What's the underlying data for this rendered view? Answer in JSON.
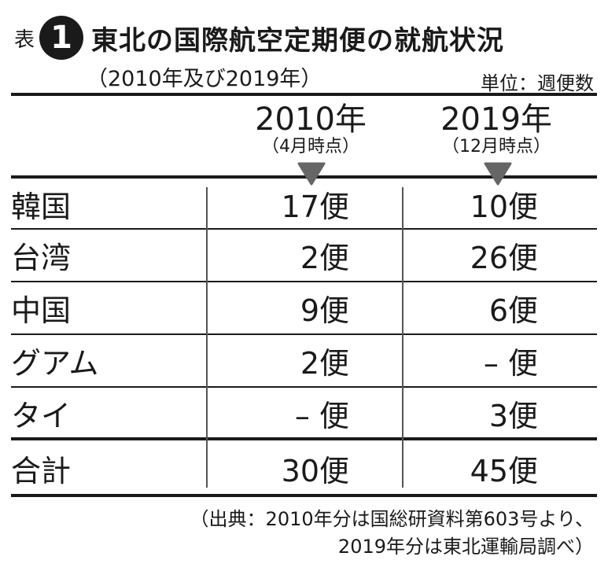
{
  "header": {
    "prefix": "表",
    "number": "1",
    "title": "東北の国際航空定期便の就航状況",
    "subtitle": "（2010年及び2019年）",
    "unit": "単位：週便数"
  },
  "columns": [
    {
      "year": "2010年",
      "note": "（4月時点）"
    },
    {
      "year": "2019年",
      "note": "（12月時点）"
    }
  ],
  "rows": [
    {
      "label": "韓国",
      "v2010": "17便",
      "v2019": "10便"
    },
    {
      "label": "台湾",
      "v2010": "2便",
      "v2019": "26便"
    },
    {
      "label": "中国",
      "v2010": "9便",
      "v2019": "6便"
    },
    {
      "label": "グアム",
      "v2010": "2便",
      "v2019": "– 便"
    },
    {
      "label": "タイ",
      "v2010": "– 便",
      "v2019": "3便"
    }
  ],
  "total": {
    "label": "合計",
    "v2010": "30便",
    "v2019": "45便"
  },
  "source": {
    "line1": "（出典：2010年分は国総研資料第603号より、",
    "line2": "2019年分は東北運輸局調べ）"
  },
  "colors": {
    "ink": "#1a1a1a",
    "marker": "#666666",
    "divider": "#555555"
  }
}
